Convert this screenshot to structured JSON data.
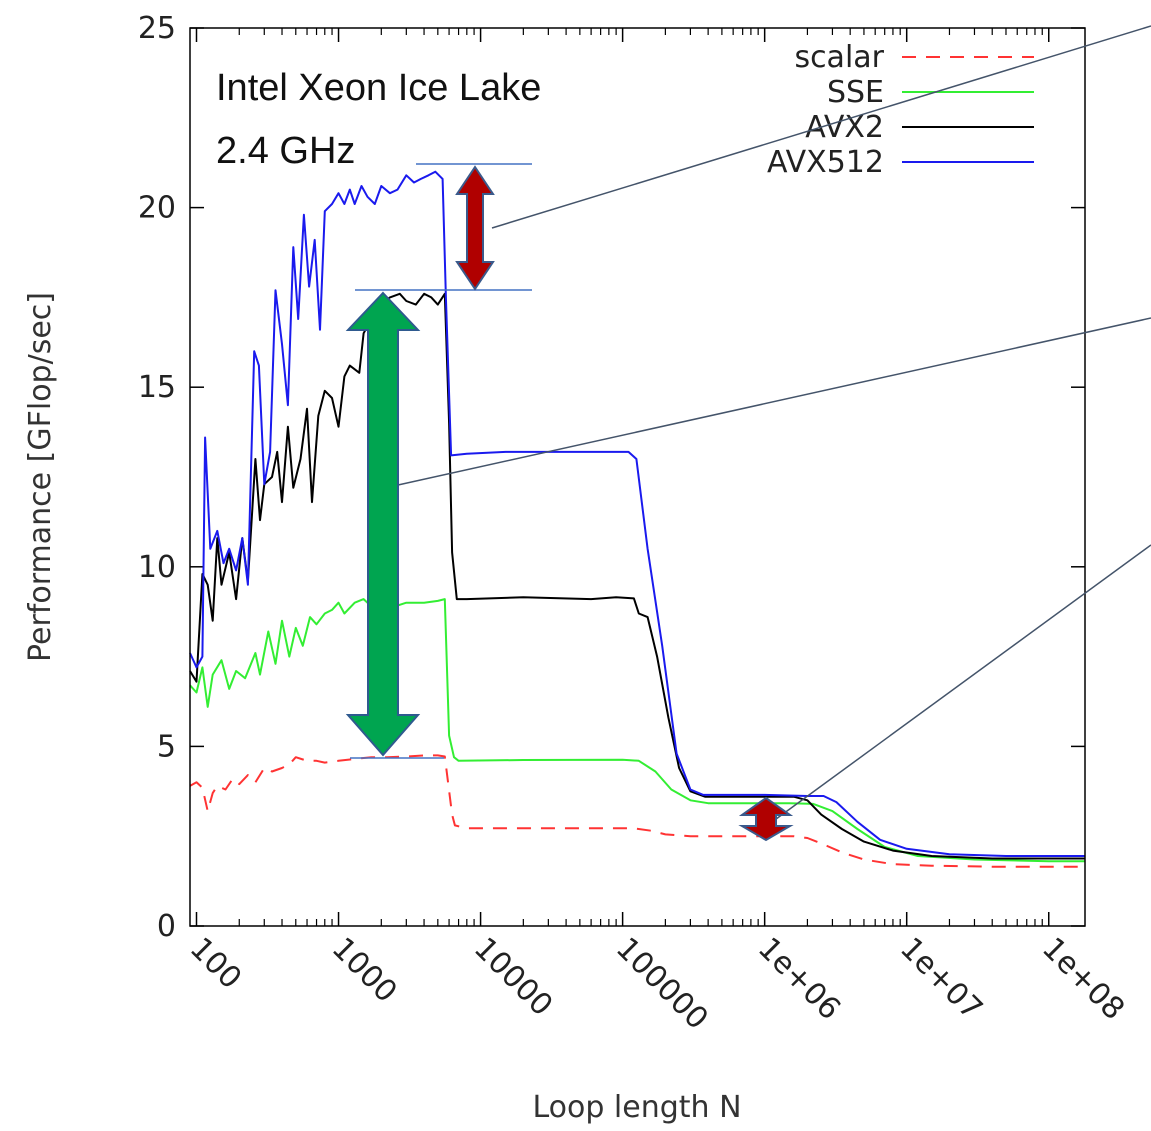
{
  "chart_data": {
    "type": "line",
    "xlabel": "Loop length N",
    "ylabel": "Performance [GFlop/sec]",
    "xscale": "log",
    "xlim": [
      90,
      180000000
    ],
    "ylim": [
      0,
      25
    ],
    "xticks": [
      {
        "value": 100,
        "label": "100"
      },
      {
        "value": 1000,
        "label": "1000"
      },
      {
        "value": 10000,
        "label": "10000"
      },
      {
        "value": 100000,
        "label": "100000"
      },
      {
        "value": 1000000,
        "label": "1e+06"
      },
      {
        "value": 10000000,
        "label": "1e+07"
      },
      {
        "value": 100000000,
        "label": "1e+08"
      }
    ],
    "yticks": [
      0,
      5,
      10,
      15,
      20,
      25
    ],
    "legend_position": "top-right",
    "annotation": [
      "Intel Xeon Ice Lake",
      "2.4 GHz"
    ],
    "series": [
      {
        "name": "scalar",
        "color": "#ff3333",
        "dash": "dashed",
        "points": [
          [
            90,
            3.9
          ],
          [
            100,
            4.0
          ],
          [
            110,
            3.85
          ],
          [
            120,
            3.2
          ],
          [
            130,
            3.7
          ],
          [
            140,
            3.9
          ],
          [
            160,
            3.8
          ],
          [
            180,
            4.1
          ],
          [
            200,
            3.95
          ],
          [
            230,
            4.2
          ],
          [
            260,
            4.0
          ],
          [
            300,
            4.4
          ],
          [
            340,
            4.3
          ],
          [
            400,
            4.4
          ],
          [
            450,
            4.5
          ],
          [
            500,
            4.7
          ],
          [
            600,
            4.6
          ],
          [
            700,
            4.6
          ],
          [
            800,
            4.55
          ],
          [
            1000,
            4.6
          ],
          [
            1300,
            4.65
          ],
          [
            1700,
            4.7
          ],
          [
            2200,
            4.7
          ],
          [
            3000,
            4.72
          ],
          [
            4000,
            4.75
          ],
          [
            5000,
            4.75
          ],
          [
            5600,
            4.72
          ],
          [
            6300,
            3.1
          ],
          [
            6600,
            2.8
          ],
          [
            8000,
            2.72
          ],
          [
            15000,
            2.72
          ],
          [
            40000,
            2.72
          ],
          [
            120000,
            2.72
          ],
          [
            160000,
            2.65
          ],
          [
            200000,
            2.55
          ],
          [
            300000,
            2.5
          ],
          [
            500000,
            2.5
          ],
          [
            1000000,
            2.5
          ],
          [
            1600000,
            2.5
          ],
          [
            2000000,
            2.45
          ],
          [
            2500000,
            2.3
          ],
          [
            3500000,
            2.05
          ],
          [
            5000000,
            1.85
          ],
          [
            8000000,
            1.72
          ],
          [
            15000000,
            1.68
          ],
          [
            40000000,
            1.65
          ],
          [
            180000000,
            1.65
          ]
        ]
      },
      {
        "name": "SSE",
        "color": "#33ee33",
        "dash": "solid",
        "points": [
          [
            90,
            6.7
          ],
          [
            100,
            6.5
          ],
          [
            110,
            7.2
          ],
          [
            120,
            6.1
          ],
          [
            130,
            7.0
          ],
          [
            150,
            7.4
          ],
          [
            170,
            6.6
          ],
          [
            190,
            7.1
          ],
          [
            220,
            6.9
          ],
          [
            260,
            7.6
          ],
          [
            280,
            7.0
          ],
          [
            320,
            8.2
          ],
          [
            360,
            7.3
          ],
          [
            400,
            8.5
          ],
          [
            450,
            7.5
          ],
          [
            500,
            8.3
          ],
          [
            560,
            7.8
          ],
          [
            630,
            8.6
          ],
          [
            700,
            8.4
          ],
          [
            800,
            8.7
          ],
          [
            900,
            8.8
          ],
          [
            1000,
            9.0
          ],
          [
            1100,
            8.7
          ],
          [
            1300,
            9.0
          ],
          [
            1500,
            9.1
          ],
          [
            1700,
            8.9
          ],
          [
            2000,
            8.95
          ],
          [
            2500,
            8.9
          ],
          [
            3000,
            9.0
          ],
          [
            4000,
            9.0
          ],
          [
            5000,
            9.05
          ],
          [
            5600,
            9.1
          ],
          [
            6000,
            5.3
          ],
          [
            6500,
            4.7
          ],
          [
            7000,
            4.6
          ],
          [
            20000,
            4.62
          ],
          [
            100000,
            4.63
          ],
          [
            130000,
            4.6
          ],
          [
            170000,
            4.3
          ],
          [
            220000,
            3.8
          ],
          [
            300000,
            3.5
          ],
          [
            400000,
            3.42
          ],
          [
            1000000,
            3.42
          ],
          [
            1500000,
            3.42
          ],
          [
            2200000,
            3.4
          ],
          [
            3000000,
            3.2
          ],
          [
            4500000,
            2.7
          ],
          [
            7000000,
            2.2
          ],
          [
            12000000,
            1.95
          ],
          [
            30000000,
            1.85
          ],
          [
            100000000,
            1.8
          ],
          [
            180000000,
            1.8
          ]
        ]
      },
      {
        "name": "AVX2",
        "color": "#000000",
        "dash": "solid",
        "points": [
          [
            90,
            7.1
          ],
          [
            100,
            6.8
          ],
          [
            110,
            9.8
          ],
          [
            120,
            9.5
          ],
          [
            130,
            8.5
          ],
          [
            140,
            10.8
          ],
          [
            150,
            9.5
          ],
          [
            170,
            10.4
          ],
          [
            190,
            9.1
          ],
          [
            210,
            10.8
          ],
          [
            230,
            9.6
          ],
          [
            260,
            13.0
          ],
          [
            280,
            11.3
          ],
          [
            300,
            12.3
          ],
          [
            340,
            12.5
          ],
          [
            370,
            13.2
          ],
          [
            400,
            11.8
          ],
          [
            440,
            13.9
          ],
          [
            480,
            12.2
          ],
          [
            540,
            13.0
          ],
          [
            600,
            14.4
          ],
          [
            650,
            11.8
          ],
          [
            720,
            14.2
          ],
          [
            800,
            14.9
          ],
          [
            900,
            14.7
          ],
          [
            1000,
            13.9
          ],
          [
            1100,
            15.3
          ],
          [
            1200,
            15.6
          ],
          [
            1400,
            15.4
          ],
          [
            1500,
            16.5
          ],
          [
            1700,
            16.9
          ],
          [
            2000,
            17.3
          ],
          [
            2300,
            17.5
          ],
          [
            2700,
            17.6
          ],
          [
            3000,
            17.4
          ],
          [
            3500,
            17.3
          ],
          [
            4000,
            17.6
          ],
          [
            4500,
            17.5
          ],
          [
            5000,
            17.3
          ],
          [
            5600,
            17.6
          ],
          [
            6000,
            14.0
          ],
          [
            6300,
            10.4
          ],
          [
            6800,
            9.1
          ],
          [
            8000,
            9.1
          ],
          [
            20000,
            9.15
          ],
          [
            60000,
            9.1
          ],
          [
            90000,
            9.15
          ],
          [
            120000,
            9.12
          ],
          [
            130000,
            8.7
          ],
          [
            150000,
            8.6
          ],
          [
            175000,
            7.5
          ],
          [
            210000,
            5.8
          ],
          [
            250000,
            4.4
          ],
          [
            300000,
            3.75
          ],
          [
            380000,
            3.6
          ],
          [
            1000000,
            3.6
          ],
          [
            1600000,
            3.6
          ],
          [
            2000000,
            3.5
          ],
          [
            2500000,
            3.1
          ],
          [
            3500000,
            2.7
          ],
          [
            5000000,
            2.35
          ],
          [
            8000000,
            2.1
          ],
          [
            15000000,
            1.95
          ],
          [
            40000000,
            1.88
          ],
          [
            180000000,
            1.88
          ]
        ]
      },
      {
        "name": "AVX512",
        "color": "#1a1aee",
        "dash": "solid",
        "points": [
          [
            90,
            7.6
          ],
          [
            100,
            7.2
          ],
          [
            110,
            7.5
          ],
          [
            115,
            13.6
          ],
          [
            125,
            10.5
          ],
          [
            140,
            11.0
          ],
          [
            155,
            10.1
          ],
          [
            170,
            10.5
          ],
          [
            190,
            9.9
          ],
          [
            210,
            10.8
          ],
          [
            230,
            9.5
          ],
          [
            255,
            16.0
          ],
          [
            275,
            15.6
          ],
          [
            300,
            12.3
          ],
          [
            330,
            13.2
          ],
          [
            360,
            17.7
          ],
          [
            400,
            16.2
          ],
          [
            440,
            14.5
          ],
          [
            480,
            18.9
          ],
          [
            520,
            16.9
          ],
          [
            570,
            19.8
          ],
          [
            620,
            17.8
          ],
          [
            680,
            19.1
          ],
          [
            740,
            16.6
          ],
          [
            800,
            19.9
          ],
          [
            900,
            20.1
          ],
          [
            1000,
            20.4
          ],
          [
            1100,
            20.1
          ],
          [
            1200,
            20.5
          ],
          [
            1300,
            20.1
          ],
          [
            1450,
            20.6
          ],
          [
            1600,
            20.3
          ],
          [
            1800,
            20.1
          ],
          [
            2000,
            20.6
          ],
          [
            2300,
            20.4
          ],
          [
            2600,
            20.5
          ],
          [
            3000,
            20.9
          ],
          [
            3400,
            20.7
          ],
          [
            3800,
            20.8
          ],
          [
            4300,
            20.9
          ],
          [
            4800,
            21.0
          ],
          [
            5400,
            20.8
          ],
          [
            5700,
            17.5
          ],
          [
            6200,
            13.1
          ],
          [
            8000,
            13.15
          ],
          [
            15000,
            13.2
          ],
          [
            50000,
            13.2
          ],
          [
            110000,
            13.2
          ],
          [
            125000,
            13.0
          ],
          [
            150000,
            10.5
          ],
          [
            190000,
            7.8
          ],
          [
            240000,
            4.8
          ],
          [
            300000,
            3.8
          ],
          [
            370000,
            3.65
          ],
          [
            1000000,
            3.65
          ],
          [
            2000000,
            3.62
          ],
          [
            2600000,
            3.62
          ],
          [
            3200000,
            3.45
          ],
          [
            4500000,
            2.9
          ],
          [
            6500000,
            2.4
          ],
          [
            10000000,
            2.15
          ],
          [
            20000000,
            2.0
          ],
          [
            50000000,
            1.95
          ],
          [
            180000000,
            1.95
          ]
        ]
      }
    ]
  }
}
